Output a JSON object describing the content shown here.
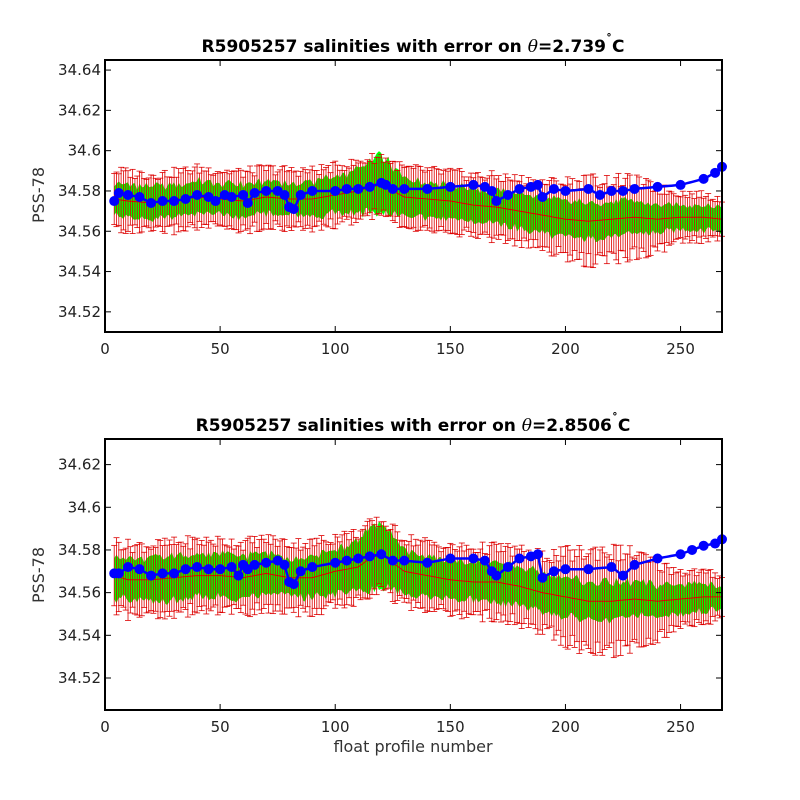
{
  "colors": {
    "uncertainty_band": "#00ff00",
    "error_bars": "#dd0000",
    "float_salinity": "#0000ff",
    "background": "#ffffff"
  },
  "chart_data": [
    {
      "type": "line",
      "title": "R5905257 salinities with error on θ=2.739˚C",
      "title_parts": [
        "R5905257 salinities with error on ",
        "θ",
        "=2.739",
        "˚",
        "C"
      ],
      "xlabel": "",
      "ylabel": "PSS-78",
      "xlim": [
        0,
        268
      ],
      "ylim": [
        34.51,
        34.645
      ],
      "xticks": [
        0,
        50,
        100,
        150,
        200,
        250
      ],
      "xtick_labels": [
        "0",
        "50",
        "100",
        "150",
        "200",
        "250"
      ],
      "yticks": [
        34.52,
        34.54,
        34.56,
        34.58,
        34.6,
        34.62,
        34.64
      ],
      "ytick_labels": [
        "34.52",
        "34.54",
        "34.56",
        "34.58",
        "34.6",
        "34.62",
        "34.64"
      ],
      "grid": false,
      "mapped_salinity": {
        "x": [
          4,
          10,
          20,
          30,
          40,
          50,
          60,
          70,
          80,
          90,
          100,
          110,
          115,
          120,
          125,
          130,
          140,
          150,
          160,
          170,
          180,
          190,
          200,
          210,
          220,
          230,
          240,
          250,
          260,
          268
        ],
        "y": [
          34.576,
          34.575,
          34.574,
          34.575,
          34.577,
          34.576,
          34.575,
          34.577,
          34.576,
          34.576,
          34.578,
          34.58,
          34.582,
          34.583,
          34.58,
          34.577,
          34.576,
          34.575,
          34.573,
          34.572,
          34.57,
          34.568,
          34.566,
          34.565,
          34.566,
          34.567,
          34.566,
          34.567,
          34.567,
          34.566
        ]
      },
      "uncertainty_halfwidth": {
        "x": [
          4,
          20,
          40,
          60,
          80,
          100,
          110,
          115,
          120,
          125,
          130,
          150,
          170,
          190,
          210,
          230,
          250,
          268
        ],
        "y": [
          0.008,
          0.008,
          0.008,
          0.008,
          0.008,
          0.009,
          0.011,
          0.013,
          0.014,
          0.012,
          0.009,
          0.008,
          0.008,
          0.009,
          0.009,
          0.008,
          0.006,
          0.006
        ]
      },
      "error_bar_halfwidth": {
        "x": [
          4,
          100,
          150,
          190,
          210,
          230,
          250,
          268
        ],
        "y": [
          0.014,
          0.014,
          0.014,
          0.016,
          0.02,
          0.018,
          0.012,
          0.01
        ]
      },
      "float_salinity": {
        "x": [
          4,
          6,
          10,
          15,
          20,
          25,
          30,
          35,
          40,
          45,
          48,
          52,
          55,
          60,
          62,
          65,
          70,
          75,
          78,
          80,
          82,
          85,
          90,
          100,
          105,
          110,
          115,
          120,
          122,
          125,
          130,
          140,
          150,
          160,
          165,
          168,
          170,
          175,
          180,
          185,
          188,
          190,
          195,
          200,
          210,
          215,
          220,
          225,
          230,
          240,
          250,
          260,
          265,
          268
        ],
        "y": [
          34.575,
          34.579,
          34.578,
          34.577,
          34.574,
          34.575,
          34.575,
          34.576,
          34.578,
          34.577,
          34.575,
          34.578,
          34.577,
          34.578,
          34.574,
          34.579,
          34.58,
          34.58,
          34.578,
          34.572,
          34.571,
          34.578,
          34.58,
          34.58,
          34.581,
          34.581,
          34.582,
          34.584,
          34.583,
          34.581,
          34.581,
          34.581,
          34.582,
          34.583,
          34.582,
          34.58,
          34.575,
          34.578,
          34.581,
          34.582,
          34.583,
          34.577,
          34.581,
          34.58,
          34.581,
          34.578,
          34.58,
          34.58,
          34.581,
          34.582,
          34.583,
          34.586,
          34.589,
          34.592
        ]
      }
    },
    {
      "type": "line",
      "title": "R5905257 salinities with error on θ=2.8506˚C",
      "title_parts": [
        "R5905257 salinities with error on ",
        "θ",
        "=2.8506",
        "˚",
        "C"
      ],
      "xlabel": "float profile number",
      "ylabel": "PSS-78",
      "xlim": [
        0,
        268
      ],
      "ylim": [
        34.505,
        34.632
      ],
      "xticks": [
        0,
        50,
        100,
        150,
        200,
        250
      ],
      "xtick_labels": [
        "0",
        "50",
        "100",
        "150",
        "200",
        "250"
      ],
      "yticks": [
        34.52,
        34.54,
        34.56,
        34.58,
        34.6,
        34.62
      ],
      "ytick_labels": [
        "34.52",
        "34.54",
        "34.56",
        "34.58",
        "34.6",
        "34.62"
      ],
      "grid": false,
      "mapped_salinity": {
        "x": [
          4,
          10,
          20,
          30,
          40,
          50,
          60,
          70,
          80,
          90,
          100,
          110,
          115,
          120,
          125,
          130,
          140,
          150,
          160,
          170,
          180,
          190,
          200,
          210,
          220,
          230,
          240,
          250,
          260,
          268
        ],
        "y": [
          34.568,
          34.566,
          34.566,
          34.567,
          34.568,
          34.568,
          34.567,
          34.569,
          34.567,
          34.567,
          34.57,
          34.572,
          34.576,
          34.578,
          34.574,
          34.57,
          34.568,
          34.566,
          34.565,
          34.565,
          34.563,
          34.56,
          34.558,
          34.556,
          34.556,
          34.557,
          34.556,
          34.557,
          34.558,
          34.558
        ]
      },
      "uncertainty_halfwidth": {
        "x": [
          4,
          20,
          40,
          60,
          80,
          100,
          110,
          115,
          120,
          125,
          130,
          150,
          170,
          190,
          210,
          230,
          250,
          268
        ],
        "y": [
          0.01,
          0.01,
          0.01,
          0.01,
          0.009,
          0.01,
          0.012,
          0.014,
          0.015,
          0.013,
          0.01,
          0.009,
          0.009,
          0.009,
          0.009,
          0.008,
          0.007,
          0.006
        ]
      },
      "error_bar_halfwidth": {
        "x": [
          4,
          100,
          150,
          190,
          200,
          215,
          230,
          250,
          268
        ],
        "y": [
          0.016,
          0.016,
          0.015,
          0.017,
          0.02,
          0.024,
          0.021,
          0.013,
          0.01
        ]
      },
      "float_salinity": {
        "x": [
          4,
          6,
          10,
          15,
          20,
          25,
          30,
          35,
          40,
          45,
          50,
          55,
          58,
          60,
          62,
          65,
          70,
          75,
          78,
          80,
          82,
          85,
          90,
          100,
          105,
          110,
          115,
          120,
          125,
          130,
          140,
          150,
          160,
          165,
          168,
          170,
          175,
          180,
          185,
          188,
          190,
          195,
          200,
          210,
          220,
          225,
          230,
          240,
          250,
          255,
          260,
          265,
          268
        ],
        "y": [
          34.569,
          34.569,
          34.572,
          34.571,
          34.568,
          34.569,
          34.569,
          34.571,
          34.572,
          34.571,
          34.571,
          34.572,
          34.568,
          34.573,
          34.571,
          34.573,
          34.574,
          34.575,
          34.573,
          34.565,
          34.564,
          34.57,
          34.572,
          34.574,
          34.575,
          34.576,
          34.577,
          34.578,
          34.575,
          34.575,
          34.574,
          34.576,
          34.576,
          34.575,
          34.57,
          34.568,
          34.572,
          34.576,
          34.577,
          34.578,
          34.567,
          34.57,
          34.571,
          34.571,
          34.572,
          34.568,
          34.573,
          34.576,
          34.578,
          34.58,
          34.582,
          34.583,
          34.585
        ]
      }
    }
  ]
}
